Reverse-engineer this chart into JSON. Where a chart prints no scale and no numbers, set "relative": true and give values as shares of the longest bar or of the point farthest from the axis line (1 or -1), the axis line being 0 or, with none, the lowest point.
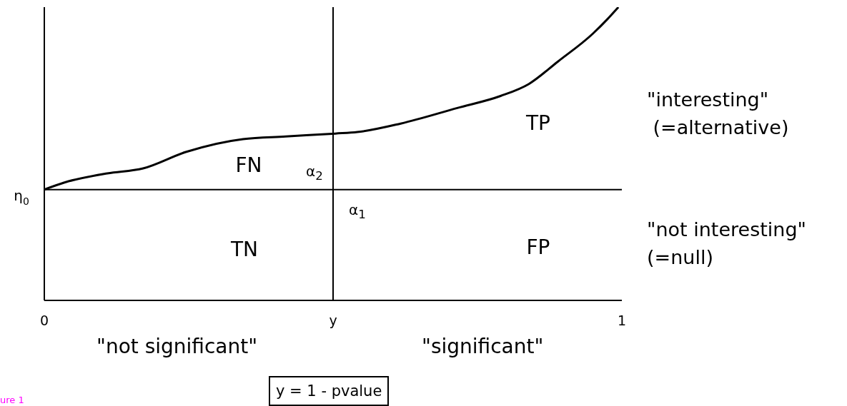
{
  "chart_data": {
    "type": "line",
    "relative": true,
    "x": [
      0,
      0.035,
      0.109,
      0.171,
      0.245,
      0.344,
      0.418,
      0.504,
      0.542,
      0.617,
      0.715,
      0.79,
      0.839,
      0.889,
      0.95,
      0.975,
      0.994
    ],
    "series": [
      {
        "color": "#000000",
        "values": [
          0.378,
          0.402,
          0.433,
          0.45,
          0.506,
          0.55,
          0.559,
          0.569,
          0.574,
          0.603,
          0.656,
          0.697,
          0.738,
          0.814,
          0.91,
          0.959,
          1
        ]
      }
    ],
    "xlim": [
      0,
      1
    ],
    "xticks": [
      0,
      {
        "value": 0.5,
        "label": "y"
      },
      1
    ],
    "ref_lines": [
      {
        "axis": "y",
        "value": 0.378,
        "label": "η$_{0}$",
        "color": "#000000"
      },
      {
        "axis": "x",
        "value": 0.5,
        "color": "#000000"
      }
    ],
    "annotations": [
      "FN",
      "TN",
      "TP",
      "FP",
      "α$_{2}$",
      "α$_{1}$",
      "\"interesting\"\n (=alternative)",
      "\"not interesting\"\n(=null)",
      "\"not significant\"",
      "\"significant\"",
      "y = 1 - pvalue",
      "ure 1"
    ],
    "marker": "none",
    "line_style": "solid"
  }
}
